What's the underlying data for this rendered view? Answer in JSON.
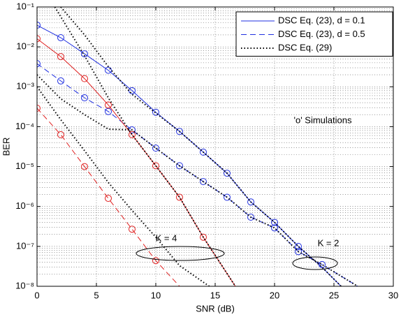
{
  "chart_data": {
    "type": "line",
    "xlabel": "SNR (dB)",
    "ylabel": "BER",
    "xlim": [
      0,
      30
    ],
    "xticks": [
      0,
      5,
      10,
      15,
      20,
      25,
      30
    ],
    "ylim": [
      1e-08,
      0.1
    ],
    "yticks": [
      {
        "value": 1e-08,
        "label": "10⁻⁸"
      },
      {
        "value": 1e-07,
        "label": "10⁻⁷"
      },
      {
        "value": 1e-06,
        "label": "10⁻⁶"
      },
      {
        "value": 1e-05,
        "label": "10⁻⁵"
      },
      {
        "value": 0.0001,
        "label": "10⁻⁴"
      },
      {
        "value": 0.001,
        "label": "10⁻³"
      },
      {
        "value": 0.01,
        "label": "10⁻²"
      },
      {
        "value": 0.1,
        "label": "10⁻¹"
      }
    ],
    "log_y": true,
    "grid": true,
    "minor_grid": true,
    "legend": "upper right",
    "annotations": [
      "'o' Simulations",
      "K = 4",
      "K = 2"
    ],
    "series": [
      {
        "name": "DSC Eq. (23), d = 0.1",
        "color": "#1f2fe0",
        "dash": "solid",
        "x": [
          0,
          2,
          4,
          6,
          8,
          10,
          12,
          14,
          16,
          18,
          20,
          22,
          24,
          25.6
        ],
        "values": [
          0.035,
          0.017,
          0.0067,
          0.0026,
          0.0008,
          0.00023,
          7.6e-05,
          2.3e-05,
          6.8e-06,
          1.3e-06,
          4e-07,
          1e-07,
          3e-08,
          1e-08
        ],
        "sim_x": [
          0,
          2,
          4,
          6,
          8,
          10,
          12,
          14,
          16,
          18,
          20,
          22
        ],
        "sim_values": [
          0.035,
          0.017,
          0.0067,
          0.0026,
          0.0008,
          0.00023,
          7.6e-05,
          2.3e-05,
          6.8e-06,
          1.3e-06,
          4e-07,
          1e-07
        ]
      },
      {
        "name": "DSC Eq. (23), d = 0.5",
        "color": "#1f2fe0",
        "dash": "dashed",
        "x": [
          0,
          2,
          4,
          6,
          8,
          10,
          12,
          14,
          16,
          18,
          20,
          22,
          24,
          27
        ],
        "values": [
          0.0038,
          0.0014,
          0.00053,
          0.00024,
          8.3e-05,
          2.9e-05,
          1.05e-05,
          4.2e-06,
          1.7e-06,
          5.4e-07,
          2.9e-07,
          7.4e-08,
          3.5e-08,
          1e-08
        ],
        "sim_x": [
          0,
          2,
          4,
          6,
          8,
          10,
          12,
          14,
          16,
          18,
          20,
          22,
          24
        ],
        "sim_values": [
          0.0038,
          0.0014,
          0.00053,
          0.00024,
          8.3e-05,
          2.9e-05,
          1.05e-05,
          4.2e-06,
          1.7e-06,
          5.4e-07,
          2.9e-07,
          7.4e-08,
          3.5e-08
        ]
      },
      {
        "name": "DSC Eq. (29)",
        "color": "#000000",
        "dash": "dotted",
        "x": [
          2,
          4,
          6,
          8,
          10,
          12,
          14,
          16,
          18,
          20,
          22,
          24,
          25.6
        ],
        "values": [
          0.1,
          0.02,
          0.0032,
          0.00065,
          0.00022,
          7.6e-05,
          2.3e-05,
          6.8e-06,
          1.3e-06,
          4e-07,
          1e-07,
          3e-08,
          1e-08
        ]
      },
      {
        "color": "#e02020",
        "dash": "solid",
        "x": [
          0,
          2,
          4,
          6,
          8,
          10,
          12,
          14,
          16.7
        ],
        "values": [
          0.016,
          0.0057,
          0.0016,
          0.00035,
          6.3e-05,
          1.05e-05,
          1.7e-06,
          1.7e-07,
          1e-08
        ],
        "sim_x": [
          0,
          2,
          4,
          6,
          8,
          10,
          12,
          14
        ],
        "sim_values": [
          0.016,
          0.0057,
          0.0016,
          0.00035,
          6.3e-05,
          1.05e-05,
          1.7e-06,
          1.7e-07
        ]
      },
      {
        "color": "#e02020",
        "dash": "dashed",
        "x": [
          0,
          2,
          4,
          6,
          8,
          10,
          12
        ],
        "values": [
          0.00029,
          6.3e-05,
          1e-05,
          1.6e-06,
          2.7e-07,
          4.4e-08,
          1e-08
        ],
        "sim_x": [
          0,
          2,
          4,
          6,
          8,
          10
        ],
        "sim_values": [
          0.00029,
          6.3e-05,
          1e-05,
          1.6e-06,
          2.7e-07,
          4.4e-08
        ]
      },
      {
        "color": "#000000",
        "dash": "dotted",
        "x": [
          0,
          2,
          4,
          6,
          8,
          10,
          12,
          14,
          16,
          18,
          20,
          22,
          24,
          27
        ],
        "values": [
          0.002,
          0.0005,
          0.0002,
          8.7e-05,
          8.3e-05,
          2.9e-05,
          1.05e-05,
          4.2e-06,
          1.7e-06,
          5.4e-07,
          2.9e-07,
          7.4e-08,
          3.5e-08,
          1e-08
        ]
      },
      {
        "color": "#000000",
        "dash": "dotted",
        "x": [
          1.5,
          4,
          6,
          8,
          10,
          12,
          14,
          16.7
        ],
        "values": [
          0.1,
          0.006,
          0.00053,
          6.3e-05,
          1.05e-05,
          1.7e-06,
          1.7e-07,
          1e-08
        ]
      },
      {
        "color": "#000000",
        "dash": "dotted",
        "x": [
          0,
          2,
          4,
          6,
          8,
          10,
          12,
          14.5
        ],
        "values": [
          0.001,
          0.00015,
          2.5e-05,
          4e-06,
          8e-07,
          1.7e-07,
          3.3e-08,
          1e-08
        ]
      }
    ]
  }
}
